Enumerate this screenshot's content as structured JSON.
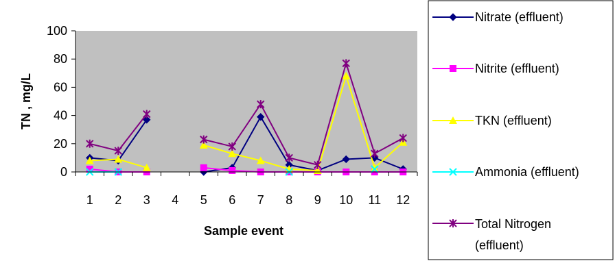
{
  "chart_data": {
    "type": "line",
    "title": "",
    "xlabel": "Sample event",
    "ylabel": "TN , mg/L",
    "categories": [
      "1",
      "2",
      "3",
      "4",
      "5",
      "6",
      "7",
      "8",
      "9",
      "10",
      "11",
      "12"
    ],
    "ylim": [
      0,
      100
    ],
    "yticks": [
      0,
      20,
      40,
      60,
      80,
      100
    ],
    "grid": false,
    "plot_background": "#c0c0c0",
    "legend_position": "right",
    "series": [
      {
        "name": "Nitrate (effluent)",
        "color": "#000080",
        "marker": "diamond",
        "values": [
          10,
          8,
          37,
          null,
          0,
          3,
          39,
          5,
          1,
          9,
          10,
          2
        ]
      },
      {
        "name": "Nitrite (effluent)",
        "color": "#ff00ff",
        "marker": "square",
        "values": [
          2,
          0,
          0,
          null,
          3,
          1,
          0,
          0,
          0,
          0,
          0,
          0
        ]
      },
      {
        "name": "TKN (effluent)",
        "color": "#ffff00",
        "marker": "triangle",
        "values": [
          8,
          9,
          3,
          null,
          19,
          13,
          8,
          2,
          1,
          68,
          3,
          21
        ]
      },
      {
        "name": "Ammonia (effluent)",
        "color": "#00ffff",
        "marker": "x",
        "values": [
          0,
          0,
          null,
          null,
          null,
          null,
          null,
          0,
          null,
          null,
          2,
          null
        ]
      },
      {
        "name": "Total Nitrogen (effluent)",
        "color": "#800080",
        "marker": "star",
        "legend_lines": [
          "Total Nitrogen",
          "(effluent)"
        ],
        "values": [
          20,
          15,
          41,
          null,
          23,
          18,
          48,
          10,
          5,
          77,
          13,
          24
        ]
      }
    ]
  }
}
